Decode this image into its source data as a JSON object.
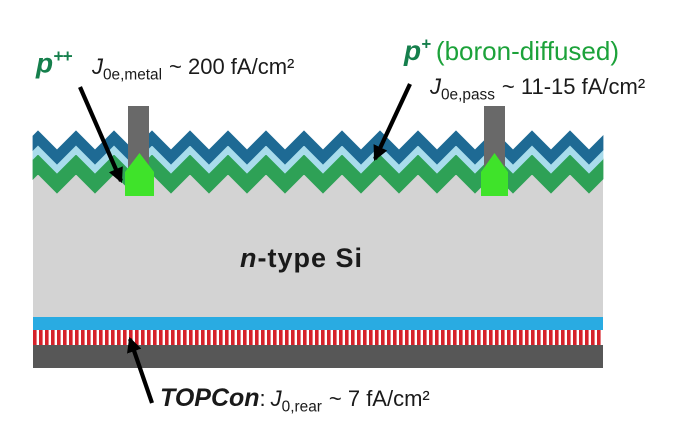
{
  "colors": {
    "arc_dark_blue": "#1e6a94",
    "interlayer_light_blue": "#a9dcec",
    "boron_green_layer": "#2ea156",
    "contact_green": "#3fe32a",
    "finger_gray": "#696969",
    "bulk_gray": "#d3d3d3",
    "rear_oxide_blue": "#29abe2",
    "topcon_red": "#d5212a",
    "stripe_white": "#ffffff",
    "rear_metal_gray": "#575757",
    "label_dark_green": "#157f4c",
    "label_bright_green": "#1ca23a",
    "arrow_black": "#000000",
    "text_black": "#1a1a1a"
  },
  "labels": {
    "p_plus_plus": {
      "base": "p",
      "sup": "++"
    },
    "j0e_metal": {
      "j": "J",
      "sub": "0e,metal",
      "rest": "~ 200 fA/cm²"
    },
    "p_plus": {
      "base": "p",
      "sup": "+",
      "rest": "(boron-diffused)"
    },
    "j0e_pass": {
      "j": "J",
      "sub": "0e,pass",
      "rest": "~ 11-15 fA/cm²"
    },
    "bulk": {
      "base": "n",
      "rest": "-type Si"
    },
    "rear": {
      "name": "TOPCon",
      "colon": ":",
      "j": "J",
      "sub": "0,rear",
      "rest": "~ 7 fA/cm²"
    }
  }
}
